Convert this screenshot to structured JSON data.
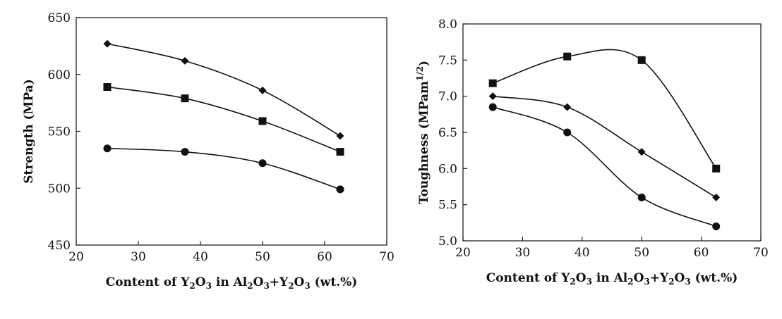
{
  "chart_data": [
    {
      "type": "line",
      "title": "",
      "xlabel": {
        "parts": [
          {
            "t": "Content of Y",
            "s": false
          },
          {
            "t": "2",
            "s": true
          },
          {
            "t": "O",
            "s": false
          },
          {
            "t": "3",
            "s": true
          },
          {
            "t": " in Al",
            "s": false
          },
          {
            "t": "2",
            "s": true
          },
          {
            "t": "O",
            "s": false
          },
          {
            "t": "3",
            "s": true
          },
          {
            "t": "+Y",
            "s": false
          },
          {
            "t": "2",
            "s": true
          },
          {
            "t": "O",
            "s": false
          },
          {
            "t": "3",
            "s": true
          },
          {
            "t": " (wt.%)",
            "s": false
          }
        ]
      },
      "ylabel": {
        "parts": [
          {
            "t": "Strength (MPa)",
            "s": false
          }
        ]
      },
      "xlim": [
        20,
        70
      ],
      "ylim": [
        450,
        650
      ],
      "xticks": [
        20,
        30,
        40,
        50,
        60,
        70
      ],
      "yticks": [
        450,
        500,
        550,
        600,
        650
      ],
      "ytick_decimals": 0,
      "grid": false,
      "series": [
        {
          "marker": "diamond",
          "x": [
            25,
            37.5,
            50,
            62.5
          ],
          "y": [
            627,
            612,
            586,
            546
          ]
        },
        {
          "marker": "square",
          "x": [
            25,
            37.5,
            50,
            62.5
          ],
          "y": [
            589,
            579,
            559,
            532
          ]
        },
        {
          "marker": "circle",
          "x": [
            25,
            37.5,
            50,
            62.5
          ],
          "y": [
            535,
            532,
            522,
            499
          ]
        }
      ]
    },
    {
      "type": "line",
      "title": "",
      "xlabel": {
        "parts": [
          {
            "t": "Content of Y",
            "s": false
          },
          {
            "t": "2",
            "s": true
          },
          {
            "t": "O",
            "s": false
          },
          {
            "t": "3",
            "s": true
          },
          {
            "t": " in Al",
            "s": false
          },
          {
            "t": "2",
            "s": true
          },
          {
            "t": "O",
            "s": false
          },
          {
            "t": "3",
            "s": true
          },
          {
            "t": "+Y",
            "s": false
          },
          {
            "t": "2",
            "s": true
          },
          {
            "t": "O",
            "s": false
          },
          {
            "t": "3",
            "s": true
          },
          {
            "t": " (wt.%)",
            "s": false
          }
        ]
      },
      "ylabel": {
        "parts": [
          {
            "t": "Toughness (MPam",
            "s": false
          },
          {
            "t": "1/2",
            "p": true
          },
          {
            "t": ")",
            "s": false
          }
        ]
      },
      "xlim": [
        20,
        70
      ],
      "ylim": [
        5.0,
        8.0
      ],
      "xticks": [
        20,
        30,
        40,
        50,
        60,
        70
      ],
      "yticks": [
        5.0,
        5.5,
        6.0,
        6.5,
        7.0,
        7.5,
        8.0
      ],
      "ytick_decimals": 1,
      "grid": false,
      "series": [
        {
          "marker": "square",
          "x": [
            25,
            37.5,
            50,
            62.5
          ],
          "y": [
            7.18,
            7.55,
            7.5,
            6.0
          ]
        },
        {
          "marker": "diamond",
          "x": [
            25,
            37.5,
            50,
            62.5
          ],
          "y": [
            7.0,
            6.85,
            6.23,
            5.6
          ]
        },
        {
          "marker": "circle",
          "x": [
            25,
            37.5,
            50,
            62.5
          ],
          "y": [
            6.85,
            6.5,
            5.6,
            5.2
          ]
        }
      ]
    }
  ],
  "colors": {
    "ink": "#111111",
    "frame": "#222222",
    "background": "#ffffff"
  }
}
